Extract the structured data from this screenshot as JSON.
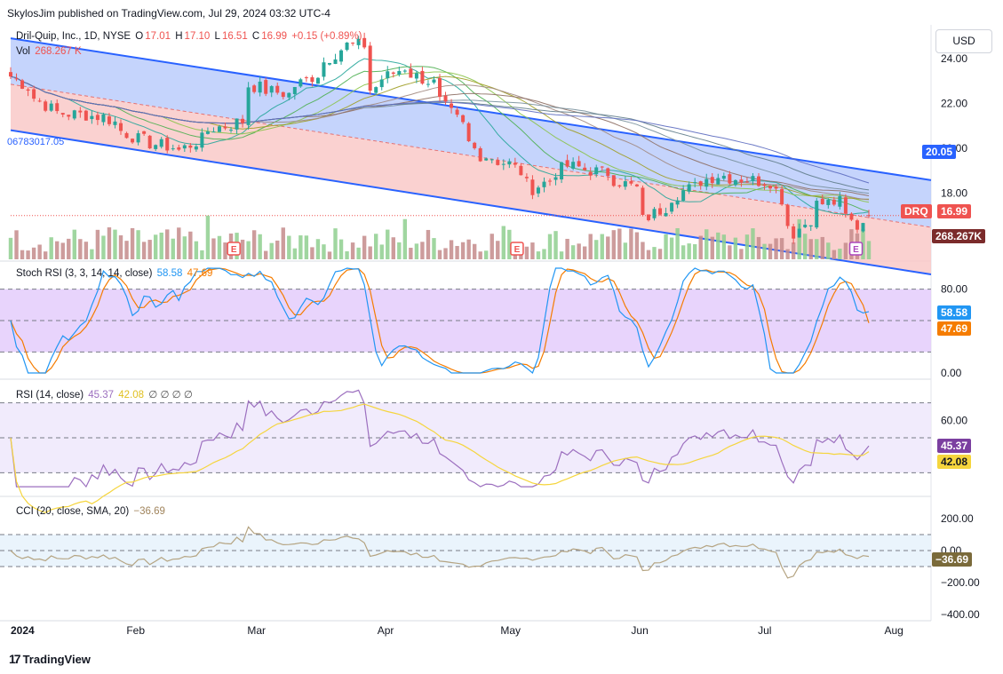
{
  "header": {
    "publish_line": "SkylosJim published on TradingView.com, Jul 29, 2024 03:32 UTC-4",
    "currency_button": "USD",
    "brand": "TradingView"
  },
  "main_pane": {
    "symbol": "Dril-Quip, Inc., 1D, NYSE",
    "open_label": "O",
    "open": "17.01",
    "high_label": "H",
    "high": "17.10",
    "low_label": "L",
    "low": "16.51",
    "close_label": "C",
    "close": "16.99",
    "change": "+0.15 (+0.89%)",
    "vol_label": "Vol",
    "vol": "268.267 K",
    "left_edge_value": "06783017.05",
    "price_tag_symbol": "DRQ",
    "price_tag_value": "16.99",
    "channel_tag_value": "20.05",
    "volume_tag_value": "268.267K",
    "y_ticks": [
      "24.00",
      "22.00",
      "20.00",
      "18.00",
      "16.00"
    ],
    "earnings_marker": "E"
  },
  "stoch_pane": {
    "title": "Stoch RSI (3, 3, 14, 14, close)",
    "k_value": "58.58",
    "d_value": "47.69",
    "y_ticks": [
      "80.00",
      "0.00"
    ]
  },
  "rsi_pane": {
    "title": "RSI (14, close)",
    "rsi_value": "45.37",
    "ma_value": "42.08",
    "extra": "∅ ∅ ∅ ∅",
    "y_ticks": [
      "60.00"
    ]
  },
  "cci_pane": {
    "title": "CCI (20, close, SMA, 20)",
    "cci_value": "−36.69",
    "y_ticks": [
      "200.00",
      "0.00",
      "−200.00",
      "−400.00"
    ]
  },
  "x_axis": {
    "ticks": [
      "2024",
      "Feb",
      "Mar",
      "Apr",
      "May",
      "Jun",
      "Jul",
      "Aug"
    ]
  },
  "colors": {
    "up": "#26a69a",
    "down": "#ef5350",
    "channel_line": "#2962ff",
    "upper_fill": "#bbcdfb",
    "lower_fill": "#f9c9c8",
    "stoch_k": "#2196f3",
    "stoch_d": "#f57c00",
    "stoch_band": "#e4ccfc",
    "rsi_line": "#9c6fbf",
    "rsi_ma": "#f5d53d",
    "cci_line": "#b5a482",
    "cci_band": "#e6f2fb"
  },
  "chart_data": {
    "type": "candlestick",
    "symbol": "DRQ",
    "timeframe": "1D",
    "x_range": [
      "2024-01-02",
      "2024-07-26"
    ],
    "ylim": [
      15.0,
      25.5
    ],
    "channel": {
      "upper_start": 24.9,
      "upper_end": 19.0,
      "lower_start": 20.8,
      "lower_end": 14.8
    },
    "anchor_closes": [
      {
        "date": "2024-01-02",
        "close": 23.2
      },
      {
        "date": "2024-01-12",
        "close": 21.6
      },
      {
        "date": "2024-01-24",
        "close": 21.4
      },
      {
        "date": "2024-02-01",
        "close": 20.4
      },
      {
        "date": "2024-02-12",
        "close": 19.9
      },
      {
        "date": "2024-02-20",
        "close": 20.9
      },
      {
        "date": "2024-02-27",
        "close": 21.2
      },
      {
        "date": "2024-02-28",
        "close": 22.8
      },
      {
        "date": "2024-03-08",
        "close": 22.4
      },
      {
        "date": "2024-03-15",
        "close": 23.3
      },
      {
        "date": "2024-03-22",
        "close": 24.6
      },
      {
        "date": "2024-03-27",
        "close": 24.6
      },
      {
        "date": "2024-03-28",
        "close": 22.6
      },
      {
        "date": "2024-04-05",
        "close": 23.6
      },
      {
        "date": "2024-04-12",
        "close": 22.9
      },
      {
        "date": "2024-04-16",
        "close": 21.8
      },
      {
        "date": "2024-04-24",
        "close": 19.7
      },
      {
        "date": "2024-05-01",
        "close": 19.3
      },
      {
        "date": "2024-05-07",
        "close": 18.2
      },
      {
        "date": "2024-05-15",
        "close": 19.2
      },
      {
        "date": "2024-05-24",
        "close": 18.9
      },
      {
        "date": "2024-05-31",
        "close": 18.2
      },
      {
        "date": "2024-06-03",
        "close": 16.8
      },
      {
        "date": "2024-06-12",
        "close": 18.1
      },
      {
        "date": "2024-06-20",
        "close": 18.8
      },
      {
        "date": "2024-06-27",
        "close": 18.6
      },
      {
        "date": "2024-07-03",
        "close": 18.5
      },
      {
        "date": "2024-07-09",
        "close": 16.2
      },
      {
        "date": "2024-07-15",
        "close": 17.5
      },
      {
        "date": "2024-07-19",
        "close": 17.6
      },
      {
        "date": "2024-07-24",
        "close": 16.5
      },
      {
        "date": "2024-07-26",
        "close": 16.99
      }
    ],
    "last_candle": {
      "open": 17.01,
      "high": 17.1,
      "low": 16.51,
      "close": 16.99,
      "volume": "268.267K"
    },
    "indicators": {
      "stoch_rsi": {
        "k": 58.58,
        "d": 47.69,
        "ylim": [
          0,
          100
        ],
        "bands": [
          20,
          50,
          80
        ]
      },
      "rsi": {
        "value": 45.37,
        "ma": 42.08,
        "ylim": [
          20,
          80
        ],
        "bands": [
          30,
          50,
          70
        ]
      },
      "cci": {
        "value": -36.69,
        "ylim": [
          -400,
          300
        ],
        "bands": [
          -100,
          0,
          100
        ]
      }
    }
  }
}
